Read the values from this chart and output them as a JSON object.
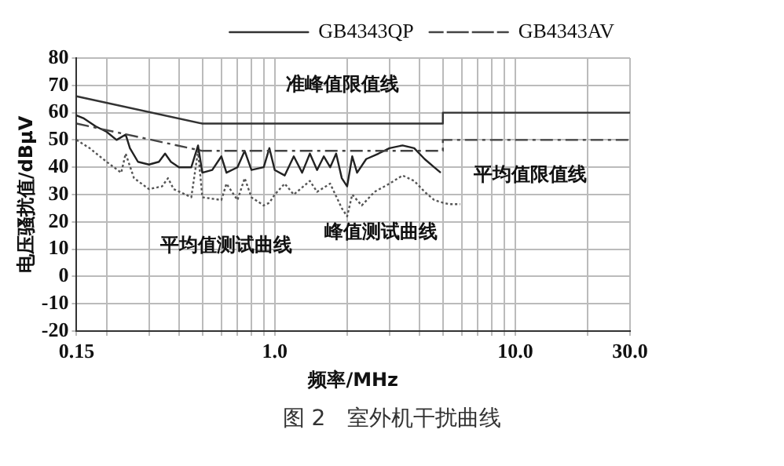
{
  "chart_data": {
    "type": "line",
    "xlabel": "频率/MHz",
    "ylabel": "电压骚扰值/dBμV",
    "log": "x",
    "xlim": [
      0.15,
      30
    ],
    "ylim": [
      -20,
      80
    ],
    "xticks": [
      0.15,
      {
        "value": 0.2,
        "label": null
      },
      {
        "value": 0.3,
        "label": null
      },
      {
        "value": 0.4,
        "label": null
      },
      {
        "value": 0.5,
        "label": null
      },
      {
        "value": 0.6,
        "label": null
      },
      {
        "value": 0.7,
        "label": null
      },
      {
        "value": 0.8,
        "label": null
      },
      {
        "value": 0.9,
        "label": null
      },
      {
        "value": 1,
        "label": "1.0"
      },
      {
        "value": 2,
        "label": null
      },
      {
        "value": 3,
        "label": null
      },
      {
        "value": 4,
        "label": null
      },
      {
        "value": 5,
        "label": null
      },
      {
        "value": 6,
        "label": null
      },
      {
        "value": 7,
        "label": null
      },
      {
        "value": 8,
        "label": null
      },
      {
        "value": 9,
        "label": null
      },
      {
        "value": 10,
        "label": "10.0"
      },
      {
        "value": 20,
        "label": null
      },
      {
        "value": 30,
        "label": "30.0"
      }
    ],
    "yticks": [
      -20,
      -10,
      0,
      10,
      20,
      30,
      40,
      50,
      60,
      70,
      80
    ],
    "grid": true,
    "legend": "top",
    "marker": "none",
    "series": [
      {
        "name": "GB4343QP",
        "color": "#333333",
        "line_style": "solid",
        "x": [
          0.15,
          0.5,
          5,
          5,
          30
        ],
        "values": [
          66,
          56,
          56,
          60,
          60
        ]
      },
      {
        "name": "GB4343AV",
        "color": "#444444",
        "line_style": "dashed",
        "x": [
          0.15,
          0.5,
          5,
          5,
          30
        ],
        "values": [
          56,
          46,
          46,
          50,
          50
        ]
      },
      {
        "color": "#222222",
        "line_style": "solid",
        "x": [
          0.15,
          0.16,
          0.18,
          0.2,
          0.22,
          0.24,
          0.25,
          0.27,
          0.3,
          0.33,
          0.35,
          0.37,
          0.4,
          0.45,
          0.48,
          0.5,
          0.55,
          0.6,
          0.63,
          0.7,
          0.75,
          0.8,
          0.9,
          0.95,
          1.0,
          1.1,
          1.2,
          1.3,
          1.4,
          1.5,
          1.6,
          1.7,
          1.8,
          1.9,
          2.0,
          2.1,
          2.2,
          2.4,
          2.7,
          3.0,
          3.4,
          3.8,
          4.2,
          4.6,
          4.9
        ],
        "values": [
          59,
          58,
          55,
          53,
          50,
          52,
          47,
          42,
          41,
          42,
          45,
          42,
          40,
          40,
          48,
          38,
          39,
          44,
          38,
          40,
          46,
          39,
          40,
          47,
          39,
          37,
          44,
          38,
          45,
          39,
          44,
          40,
          45,
          36,
          33,
          44,
          38,
          43,
          45,
          47,
          48,
          47,
          43,
          40,
          38
        ]
      },
      {
        "color": "#555555",
        "line_style": "dotted",
        "x": [
          0.15,
          0.17,
          0.2,
          0.23,
          0.24,
          0.26,
          0.3,
          0.34,
          0.36,
          0.38,
          0.45,
          0.48,
          0.5,
          0.6,
          0.63,
          0.7,
          0.75,
          0.8,
          0.9,
          0.95,
          1.0,
          1.1,
          1.2,
          1.4,
          1.5,
          1.7,
          1.9,
          2.0,
          2.1,
          2.3,
          2.6,
          3.0,
          3.4,
          3.8,
          4.2,
          4.6,
          5.0,
          5.3,
          5.9
        ],
        "values": [
          50,
          47,
          42,
          38,
          45,
          36,
          32,
          33,
          36,
          32,
          29,
          46,
          29,
          28,
          34,
          28,
          36,
          29,
          26,
          27,
          30,
          34,
          30,
          35,
          31,
          34,
          25,
          22,
          30,
          26,
          31,
          34,
          37,
          35,
          31,
          28,
          27,
          26.5,
          26.5
        ]
      }
    ],
    "annotations": [
      "准峰值限值线",
      "平均值限值线",
      "峰值测试曲线",
      "平均值测试曲线",
      "图 2　室外机干扰曲线"
    ]
  }
}
